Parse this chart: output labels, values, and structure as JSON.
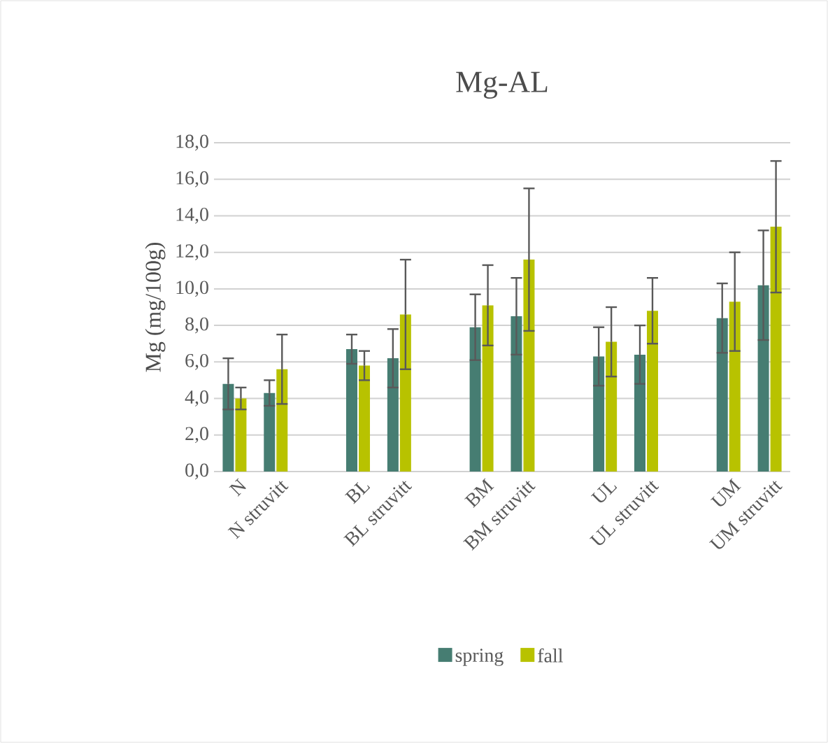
{
  "chart_data": {
    "type": "bar",
    "title": "Mg-AL",
    "ylabel": "Mg (mg/100g)",
    "categories": [
      "N",
      "N struvitt",
      null,
      "BL",
      "BL struvitt",
      null,
      "BM",
      "BM struvitt",
      null,
      "UL",
      "UL struvitt",
      null,
      "UM",
      "UM struvitt"
    ],
    "series": [
      {
        "name": "spring",
        "color": "#467d72",
        "values": [
          4.8,
          4.3,
          null,
          6.7,
          6.2,
          null,
          7.9,
          8.5,
          null,
          6.3,
          6.4,
          null,
          8.4,
          10.2
        ],
        "errors": [
          1.4,
          0.7,
          null,
          0.8,
          1.6,
          null,
          1.8,
          2.1,
          null,
          1.6,
          1.6,
          null,
          1.9,
          3.0
        ]
      },
      {
        "name": "fall",
        "color": "#b8c200",
        "values": [
          4.0,
          5.6,
          null,
          5.8,
          8.6,
          null,
          9.1,
          11.6,
          null,
          7.1,
          8.8,
          null,
          9.3,
          13.4
        ],
        "errors": [
          0.6,
          1.9,
          null,
          0.8,
          3.0,
          null,
          2.2,
          3.9,
          null,
          1.9,
          1.8,
          null,
          2.7,
          3.6
        ]
      }
    ],
    "ylim": [
      0,
      18
    ],
    "yticks": [
      {
        "value": 0,
        "label": "0,0"
      },
      {
        "value": 2,
        "label": "2,0"
      },
      {
        "value": 4,
        "label": "4,0"
      },
      {
        "value": 6,
        "label": "6,0"
      },
      {
        "value": 8,
        "label": "8,0"
      },
      {
        "value": 10,
        "label": "10,0"
      },
      {
        "value": 12,
        "label": "12,0"
      },
      {
        "value": 14,
        "label": "14,0"
      },
      {
        "value": 16,
        "label": "16,0"
      },
      {
        "value": 18,
        "label": "18,0"
      }
    ],
    "grid": "y",
    "legend": "bottom"
  }
}
